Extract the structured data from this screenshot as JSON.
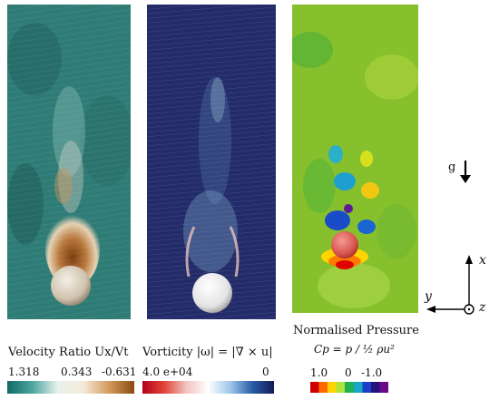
{
  "colorbars": {
    "velocity": {
      "title": "Velocity Ratio Ux/Vt",
      "ticks": [
        "1.318",
        "0.343",
        "-0.631"
      ],
      "colors": [
        "#0e6b66",
        "#4fa6a0",
        "#e9f2ee",
        "#f6ead8",
        "#d49a5c",
        "#8a4a12"
      ]
    },
    "vorticity": {
      "title": "Vorticity |ω| = |∇ × u|",
      "ticks": [
        "4.0 e+04",
        "0"
      ],
      "colors": [
        "#b3001b",
        "#e2463a",
        "#f2c4c0",
        "#ffffff",
        "#9fc7ea",
        "#2a5ea8",
        "#131a55"
      ]
    },
    "pressure": {
      "title": "Normalised Pressure",
      "formula": "Cp = p / ½ ρu²",
      "ticks": [
        "1.0",
        "0",
        "-1.0"
      ],
      "colors": [
        "#d00000",
        "#ff6a00",
        "#ffd400",
        "#aee33a",
        "#1fb055",
        "#1aa6c8",
        "#1b3fc8",
        "#25127a",
        "#6a0a8a"
      ]
    }
  },
  "gravity": {
    "label": "g"
  },
  "axes": {
    "x": "x",
    "y": "y",
    "z": "z"
  },
  "panels": [
    {
      "name": "velocity-ratio-field",
      "background": "#2f7c77"
    },
    {
      "name": "vorticity-field",
      "background": "#232b69"
    },
    {
      "name": "normalised-pressure-field",
      "background": "#86c02c"
    }
  ]
}
